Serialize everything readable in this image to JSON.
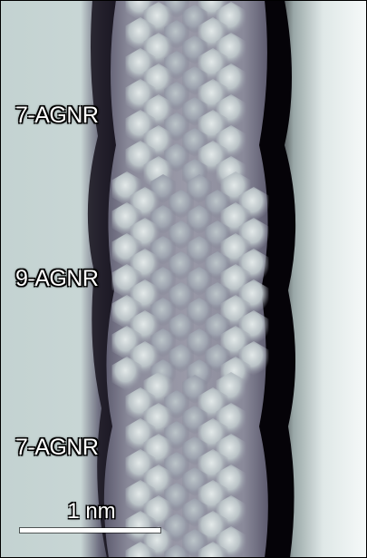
{
  "labels": {
    "top": "7-AGNR",
    "middle": "9-AGNR",
    "bottom": "7-AGNR"
  },
  "scale_bar": {
    "text": "1 nm"
  },
  "colors": {
    "background_bright": "#eef3f2",
    "substrate": "#c6d4d3",
    "trench_dark": "#0c0a14",
    "ribbon_base": "#7c7c8a",
    "lobe_bright": "#dde4e4",
    "border": "#000000"
  }
}
